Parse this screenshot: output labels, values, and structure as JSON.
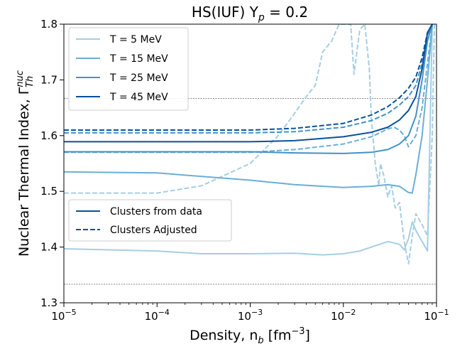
{
  "chart_data": {
    "type": "line",
    "title": "HS(IUF)  Y",
    "title_sub": "p",
    "title_tail": " = 0.2",
    "xlabel": "Density, n",
    "xlabel_sub": "b",
    "xlabel_tail": " [fm",
    "xlabel_sup": "−3",
    "xlabel_close": "]",
    "ylabel": "Nuclear Thermal Index, Γ",
    "ylabel_sup": "nuc",
    "ylabel_sub": "Th",
    "xscale": "log",
    "xlim": [
      1e-05,
      0.1
    ],
    "ylim": [
      1.3,
      1.8
    ],
    "x_ticks": [
      {
        "value": 1e-05,
        "base": "10",
        "exp": "−5"
      },
      {
        "value": 0.0001,
        "base": "10",
        "exp": "−4"
      },
      {
        "value": 0.001,
        "base": "10",
        "exp": "−3"
      },
      {
        "value": 0.01,
        "base": "10",
        "exp": "−2"
      },
      {
        "value": 0.1,
        "base": "10",
        "exp": "−1"
      }
    ],
    "y_ticks": [
      "1.3",
      "1.4",
      "1.5",
      "1.6",
      "1.7",
      "1.8"
    ],
    "reference_lines": [
      1.6667,
      1.3333
    ],
    "colors": {
      "T5": "#a6cee3",
      "T15": "#6baed6",
      "T25": "#4292c6",
      "T45": "#08519c",
      "ref": "#888888"
    },
    "legend_temperature": {
      "placement": "upper-left",
      "entries": [
        {
          "label": "T = 5 MeV",
          "color": "#a6cee3"
        },
        {
          "label": "T = 15 MeV",
          "color": "#6baed6"
        },
        {
          "label": "T = 25 MeV",
          "color": "#4292c6"
        },
        {
          "label": "T = 45 MeV",
          "color": "#08519c"
        }
      ]
    },
    "legend_style": {
      "placement": "lower-left",
      "entries": [
        {
          "label": "Clusters from data",
          "dash": "solid",
          "color": "#08519c"
        },
        {
          "label": "Clusters Adjusted",
          "dash": "dashed",
          "color": "#08519c"
        }
      ]
    },
    "series": [
      {
        "temperature": "T = 5 MeV",
        "style": "solid",
        "color": "#a6cee3",
        "points": [
          [
            1e-05,
            1.397
          ],
          [
            0.0001,
            1.393
          ],
          [
            0.0003,
            1.388
          ],
          [
            0.001,
            1.388
          ],
          [
            0.003,
            1.389
          ],
          [
            0.006,
            1.386
          ],
          [
            0.01,
            1.388
          ],
          [
            0.015,
            1.393
          ],
          [
            0.02,
            1.4
          ],
          [
            0.03,
            1.41
          ],
          [
            0.04,
            1.405
          ],
          [
            0.045,
            1.395
          ],
          [
            0.05,
            1.415
          ],
          [
            0.055,
            1.445
          ],
          [
            0.06,
            1.43
          ],
          [
            0.07,
            1.41
          ],
          [
            0.08,
            1.393
          ],
          [
            0.085,
            1.6
          ],
          [
            0.09,
            1.8
          ]
        ]
      },
      {
        "temperature": "T = 5 MeV",
        "style": "dashed",
        "color": "#a6cee3",
        "points": [
          [
            1e-05,
            1.497
          ],
          [
            0.0001,
            1.497
          ],
          [
            0.0003,
            1.51
          ],
          [
            0.001,
            1.55
          ],
          [
            0.002,
            1.6
          ],
          [
            0.003,
            1.64
          ],
          [
            0.004,
            1.67
          ],
          [
            0.005,
            1.69
          ],
          [
            0.006,
            1.75
          ],
          [
            0.0075,
            1.77
          ],
          [
            0.009,
            1.8
          ],
          [
            0.012,
            1.8
          ],
          [
            0.013,
            1.71
          ],
          [
            0.015,
            1.79
          ],
          [
            0.017,
            1.8
          ],
          [
            0.019,
            1.72
          ],
          [
            0.02,
            1.63
          ],
          [
            0.022,
            1.55
          ],
          [
            0.024,
            1.51
          ],
          [
            0.025,
            1.55
          ],
          [
            0.027,
            1.53
          ],
          [
            0.03,
            1.49
          ],
          [
            0.033,
            1.51
          ],
          [
            0.036,
            1.47
          ],
          [
            0.04,
            1.48
          ],
          [
            0.045,
            1.41
          ],
          [
            0.05,
            1.37
          ],
          [
            0.055,
            1.42
          ],
          [
            0.06,
            1.46
          ],
          [
            0.07,
            1.44
          ],
          [
            0.08,
            1.42
          ],
          [
            0.09,
            1.6
          ],
          [
            0.095,
            1.8
          ]
        ]
      },
      {
        "temperature": "T = 15 MeV",
        "style": "solid",
        "color": "#6baed6",
        "points": [
          [
            1e-05,
            1.535
          ],
          [
            0.0001,
            1.533
          ],
          [
            0.001,
            1.52
          ],
          [
            0.003,
            1.512
          ],
          [
            0.01,
            1.507
          ],
          [
            0.02,
            1.509
          ],
          [
            0.03,
            1.512
          ],
          [
            0.04,
            1.509
          ],
          [
            0.05,
            1.498
          ],
          [
            0.055,
            1.497
          ],
          [
            0.06,
            1.53
          ],
          [
            0.07,
            1.6
          ],
          [
            0.08,
            1.7
          ],
          [
            0.09,
            1.8
          ]
        ]
      },
      {
        "temperature": "T = 15 MeV",
        "style": "dashed",
        "color": "#6baed6",
        "points": [
          [
            1e-05,
            1.57
          ],
          [
            0.0001,
            1.57
          ],
          [
            0.001,
            1.57
          ],
          [
            0.003,
            1.575
          ],
          [
            0.01,
            1.585
          ],
          [
            0.02,
            1.598
          ],
          [
            0.03,
            1.612
          ],
          [
            0.035,
            1.615
          ],
          [
            0.04,
            1.61
          ],
          [
            0.045,
            1.6
          ],
          [
            0.05,
            1.58
          ],
          [
            0.06,
            1.6
          ],
          [
            0.07,
            1.65
          ],
          [
            0.08,
            1.73
          ],
          [
            0.09,
            1.8
          ]
        ]
      },
      {
        "temperature": "T = 25 MeV",
        "style": "solid",
        "color": "#4292c6",
        "points": [
          [
            1e-05,
            1.571
          ],
          [
            0.0001,
            1.571
          ],
          [
            0.001,
            1.571
          ],
          [
            0.003,
            1.569
          ],
          [
            0.01,
            1.568
          ],
          [
            0.02,
            1.57
          ],
          [
            0.03,
            1.575
          ],
          [
            0.04,
            1.585
          ],
          [
            0.05,
            1.6
          ],
          [
            0.06,
            1.635
          ],
          [
            0.07,
            1.7
          ],
          [
            0.08,
            1.77
          ],
          [
            0.09,
            1.8
          ]
        ]
      },
      {
        "temperature": "T = 25 MeV",
        "style": "dashed",
        "color": "#4292c6",
        "points": [
          [
            1e-05,
            1.605
          ],
          [
            0.0001,
            1.605
          ],
          [
            0.001,
            1.605
          ],
          [
            0.003,
            1.607
          ],
          [
            0.01,
            1.615
          ],
          [
            0.02,
            1.627
          ],
          [
            0.03,
            1.64
          ],
          [
            0.04,
            1.655
          ],
          [
            0.05,
            1.67
          ],
          [
            0.06,
            1.69
          ],
          [
            0.07,
            1.73
          ],
          [
            0.08,
            1.78
          ],
          [
            0.09,
            1.8
          ]
        ]
      },
      {
        "temperature": "T = 45 MeV",
        "style": "solid",
        "color": "#08519c",
        "points": [
          [
            1e-05,
            1.589
          ],
          [
            0.0001,
            1.589
          ],
          [
            0.001,
            1.589
          ],
          [
            0.003,
            1.591
          ],
          [
            0.01,
            1.598
          ],
          [
            0.02,
            1.606
          ],
          [
            0.03,
            1.615
          ],
          [
            0.04,
            1.628
          ],
          [
            0.05,
            1.645
          ],
          [
            0.06,
            1.67
          ],
          [
            0.07,
            1.72
          ],
          [
            0.08,
            1.785
          ],
          [
            0.09,
            1.8
          ]
        ]
      },
      {
        "temperature": "T = 45 MeV",
        "style": "dashed",
        "color": "#08519c",
        "points": [
          [
            1e-05,
            1.61
          ],
          [
            0.0001,
            1.61
          ],
          [
            0.001,
            1.61
          ],
          [
            0.003,
            1.613
          ],
          [
            0.01,
            1.622
          ],
          [
            0.02,
            1.637
          ],
          [
            0.03,
            1.652
          ],
          [
            0.04,
            1.668
          ],
          [
            0.05,
            1.685
          ],
          [
            0.06,
            1.705
          ],
          [
            0.07,
            1.74
          ],
          [
            0.08,
            1.785
          ],
          [
            0.09,
            1.8
          ]
        ]
      }
    ]
  }
}
